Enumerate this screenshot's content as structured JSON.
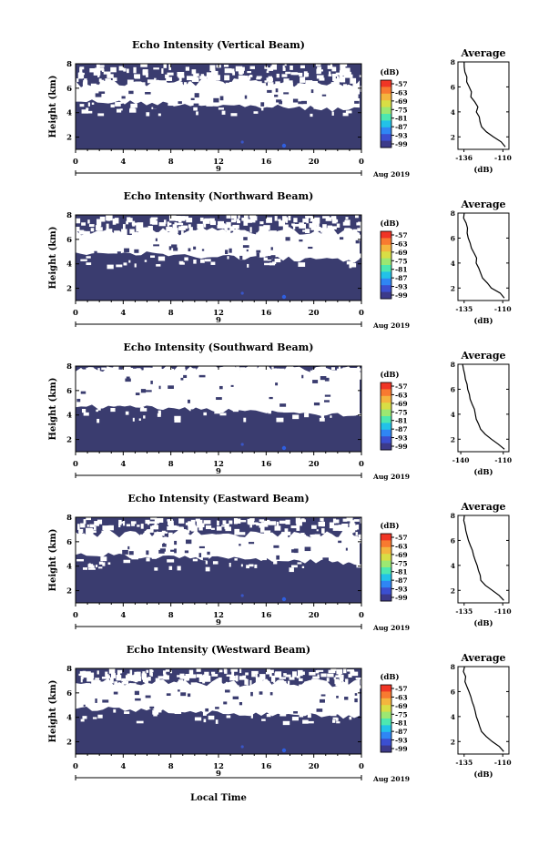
{
  "figure": {
    "xlabel_global": "Local Time",
    "date_label": "Aug 2019",
    "day_label": "9",
    "colorbar_unit": "(dB)",
    "colorbar_ticks": [
      "-57",
      "-63",
      "-69",
      "-75",
      "-81",
      "-87",
      "-93",
      "-99"
    ],
    "colorbar_colors": [
      "#f03525",
      "#f87a30",
      "#f4b53e",
      "#d8de45",
      "#9ce872",
      "#4de8b0",
      "#22c2e8",
      "#2f86f4",
      "#3b4fd0",
      "#3c3a8a"
    ],
    "background_fill": "#3a3c6f",
    "avg_title": "Average",
    "avg_xlabel": "(dB)"
  },
  "chart_data": [
    {
      "type": "heatmap",
      "title": "Echo Intensity (Vertical Beam)",
      "ylabel": "Height (km)",
      "xlabel": "Local Time",
      "x_ticks": [
        "0",
        "4",
        "8",
        "12",
        "16",
        "20",
        "0"
      ],
      "y_ticks": [
        "2",
        "4",
        "6",
        "8"
      ],
      "xlim": [
        0,
        24
      ],
      "ylim": [
        1,
        8
      ],
      "colorbar_range_db": [
        -99,
        -57
      ],
      "gap_band_km": [
        [
          4.6,
          6.0
        ]
      ],
      "profile": {
        "title": "Average",
        "xlabel": "(dB)",
        "x_ticks": [
          "-136",
          "-110"
        ],
        "xlim": [
          -140,
          -106
        ],
        "y_ticks": [
          "2",
          "4",
          "6",
          "8"
        ],
        "y": [
          1.2,
          1.6,
          2.0,
          2.4,
          2.8,
          3.2,
          3.6,
          4.0,
          4.4,
          4.8,
          5.2,
          5.6,
          6.0,
          6.4,
          6.8,
          7.2,
          7.6,
          8.0
        ],
        "x": [
          -108,
          -111,
          -116,
          -121,
          -124,
          -125,
          -126,
          -128,
          -127,
          -129,
          -131,
          -131,
          -133,
          -134,
          -134,
          -135,
          -136,
          -136
        ]
      }
    },
    {
      "type": "heatmap",
      "title": "Echo Intensity (Northward Beam)",
      "ylabel": "Height (km)",
      "xlabel": "Local Time",
      "x_ticks": [
        "0",
        "4",
        "8",
        "12",
        "16",
        "20",
        "0"
      ],
      "y_ticks": [
        "2",
        "4",
        "6",
        "8"
      ],
      "xlim": [
        0,
        24
      ],
      "ylim": [
        1,
        8
      ],
      "colorbar_range_db": [
        -99,
        -57
      ],
      "gap_band_km": [
        [
          4.6,
          6.2
        ]
      ],
      "profile": {
        "title": "Average",
        "xlabel": "(dB)",
        "x_ticks": [
          "-135",
          "-110"
        ],
        "xlim": [
          -139,
          -106
        ],
        "y_ticks": [
          "2",
          "4",
          "6",
          "8"
        ],
        "y": [
          1.2,
          1.6,
          2.0,
          2.4,
          2.8,
          3.2,
          3.6,
          4.0,
          4.4,
          4.8,
          5.2,
          5.6,
          6.0,
          6.4,
          6.8,
          7.2,
          7.6,
          8.0
        ],
        "x": [
          -109,
          -112,
          -117,
          -120,
          -123,
          -124,
          -126,
          -127,
          -127,
          -129,
          -130,
          -131,
          -132,
          -133,
          -133,
          -134,
          -135,
          -135
        ]
      }
    },
    {
      "type": "heatmap",
      "title": "Echo Intensity (Southward Beam)",
      "ylabel": "Height (km)",
      "xlabel": "Local Time",
      "x_ticks": [
        "0",
        "4",
        "8",
        "12",
        "16",
        "20",
        "0"
      ],
      "y_ticks": [
        "2",
        "4",
        "6",
        "8"
      ],
      "xlim": [
        0,
        24
      ],
      "ylim": [
        1,
        8
      ],
      "colorbar_range_db": [
        -99,
        -57
      ],
      "gap_band_km": [
        [
          4.4,
          7.4
        ]
      ],
      "profile": {
        "title": "Average",
        "xlabel": "(dB)",
        "x_ticks": [
          "-140",
          "-110"
        ],
        "xlim": [
          -142,
          -106
        ],
        "y_ticks": [
          "2",
          "4",
          "6",
          "8"
        ],
        "y": [
          1.2,
          1.6,
          2.0,
          2.4,
          2.8,
          3.2,
          3.6,
          4.0,
          4.4,
          4.8,
          5.2,
          5.6,
          6.0,
          6.4,
          6.8,
          7.2,
          7.6,
          8.0
        ],
        "x": [
          -109,
          -113,
          -118,
          -123,
          -126,
          -127,
          -129,
          -130,
          -130,
          -132,
          -133,
          -134,
          -135,
          -136,
          -137,
          -137,
          -138,
          -139
        ]
      }
    },
    {
      "type": "heatmap",
      "title": "Echo Intensity (Eastward Beam)",
      "ylabel": "Height (km)",
      "xlabel": "Local Time",
      "x_ticks": [
        "0",
        "4",
        "8",
        "12",
        "16",
        "20",
        "0"
      ],
      "y_ticks": [
        "2",
        "4",
        "6",
        "8"
      ],
      "xlim": [
        0,
        24
      ],
      "ylim": [
        1,
        8
      ],
      "colorbar_range_db": [
        -99,
        -57
      ],
      "gap_band_km": [
        [
          4.6,
          6.2
        ]
      ],
      "profile": {
        "title": "Average",
        "xlabel": "(dB)",
        "x_ticks": [
          "-135",
          "-110"
        ],
        "xlim": [
          -139,
          -106
        ],
        "y_ticks": [
          "2",
          "4",
          "6",
          "8"
        ],
        "y": [
          1.2,
          1.6,
          2.0,
          2.4,
          2.8,
          3.2,
          3.6,
          4.0,
          4.4,
          4.8,
          5.2,
          5.6,
          6.0,
          6.4,
          6.8,
          7.2,
          7.6,
          8.0
        ],
        "x": [
          -109,
          -112,
          -117,
          -121,
          -124,
          -125,
          -126,
          -127,
          -128,
          -129,
          -130,
          -131,
          -132,
          -133,
          -134,
          -134,
          -135,
          -135
        ]
      }
    },
    {
      "type": "heatmap",
      "title": "Echo Intensity (Westward Beam)",
      "ylabel": "Height (km)",
      "xlabel": "Local Time",
      "x_ticks": [
        "0",
        "4",
        "8",
        "12",
        "16",
        "20",
        "0"
      ],
      "y_ticks": [
        "2",
        "4",
        "6",
        "8"
      ],
      "xlim": [
        0,
        24
      ],
      "ylim": [
        1,
        8
      ],
      "colorbar_range_db": [
        -99,
        -57
      ],
      "gap_band_km": [
        [
          4.4,
          6.4
        ]
      ],
      "profile": {
        "title": "Average",
        "xlabel": "(dB)",
        "x_ticks": [
          "-135",
          "-110"
        ],
        "xlim": [
          -139,
          -106
        ],
        "y_ticks": [
          "2",
          "4",
          "6",
          "8"
        ],
        "y": [
          1.2,
          1.6,
          2.0,
          2.4,
          2.8,
          3.2,
          3.6,
          4.0,
          4.4,
          4.8,
          5.2,
          5.6,
          6.0,
          6.4,
          6.8,
          7.2,
          7.6,
          8.0
        ],
        "x": [
          -109,
          -112,
          -117,
          -121,
          -124,
          -125,
          -126,
          -127,
          -128,
          -129,
          -130,
          -131,
          -132,
          -133,
          -134,
          -134,
          -135,
          -135
        ]
      }
    }
  ]
}
